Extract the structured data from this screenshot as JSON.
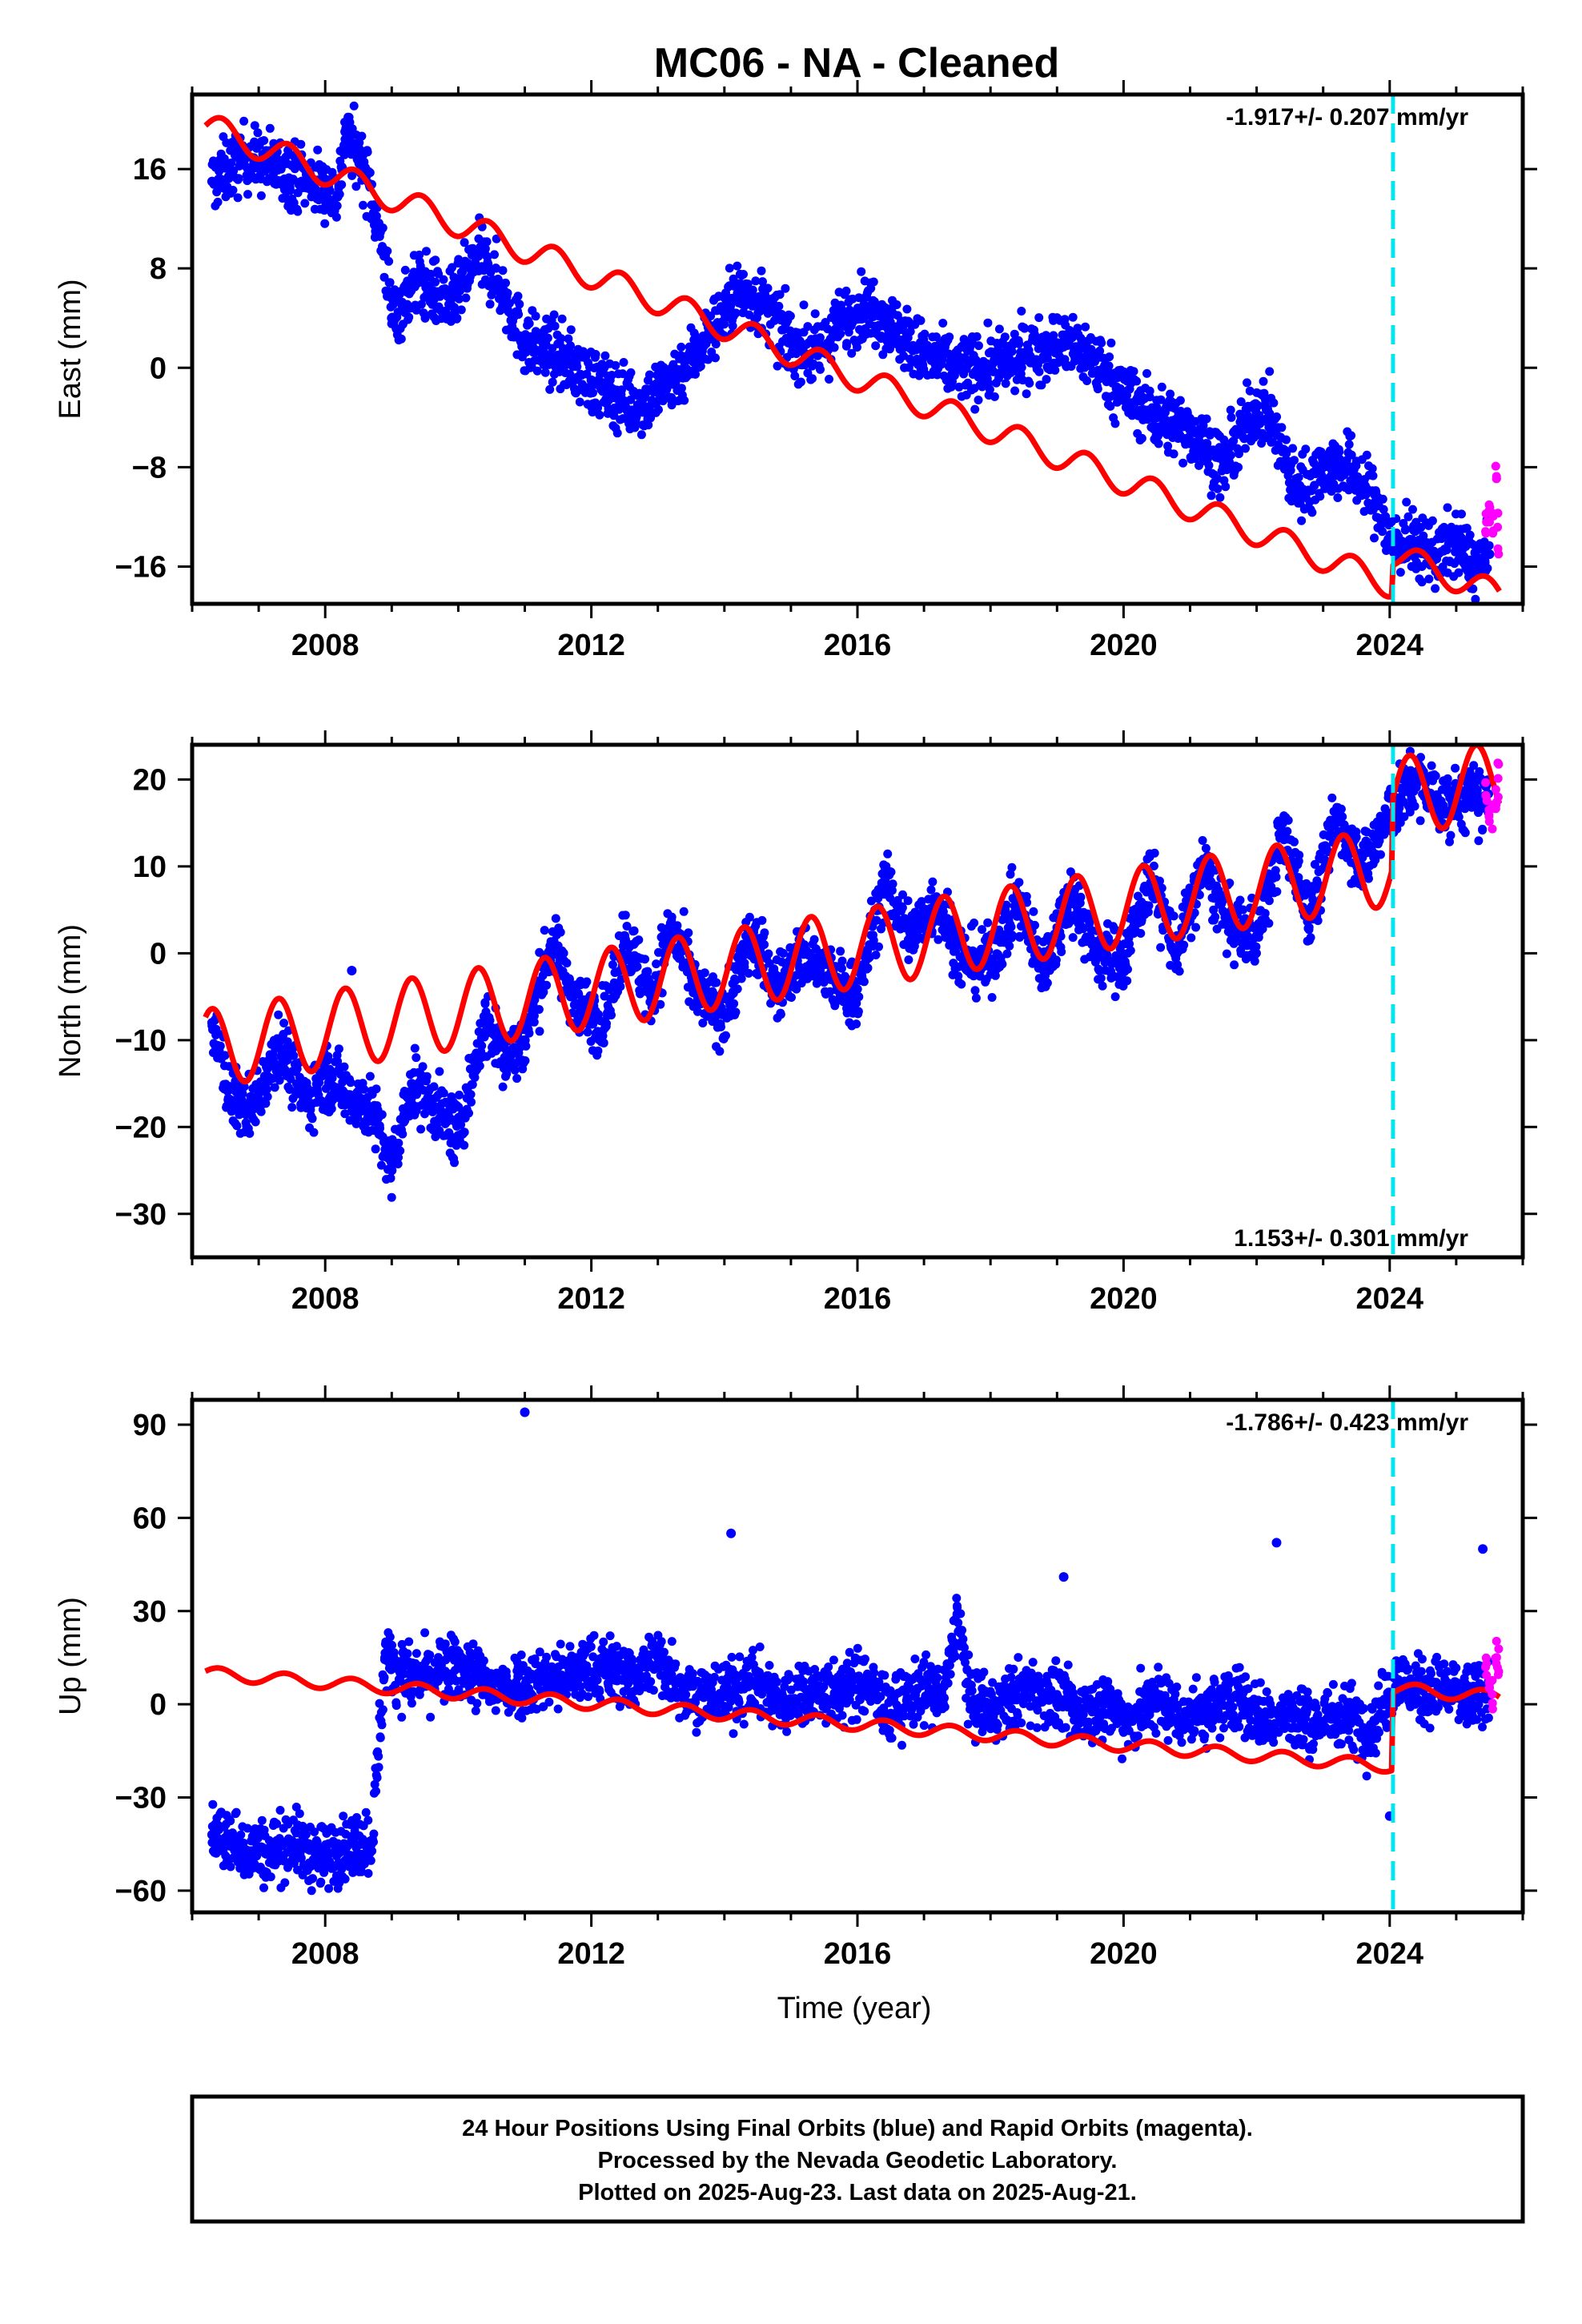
{
  "title": "MC06  - NA - Cleaned",
  "colors": {
    "final_orbits": "#0000ff",
    "rapid_orbits": "#ff00ff",
    "model": "#ff0000",
    "event_marker": "#00e5ee",
    "frame": "#000000"
  },
  "footer": {
    "line1": "24 Hour Positions Using Final Orbits (blue) and Rapid Orbits (magenta).",
    "line2": "Processed by the Nevada Geodetic Laboratory.",
    "line3": "Plotted on 2025-Aug-23. Last data on 2025-Aug-21."
  },
  "chart_data": [
    {
      "type": "scatter",
      "component": "East",
      "ylabel": "East (mm)",
      "xlabel": "",
      "rate_label": "-1.917+/- 0.207 mm/yr",
      "rate_label_position": "top-right",
      "xlim": [
        2006.0,
        2026.0
      ],
      "ylim": [
        -19,
        22
      ],
      "x_ticks": [
        2008,
        2012,
        2016,
        2020,
        2024
      ],
      "y_ticks": [
        -16,
        -8,
        0,
        8,
        16
      ],
      "event_line_x": 2024.05,
      "series": [
        {
          "name": "Final Orbits",
          "color": "#0000ff",
          "kind": "points",
          "x": [
            2006.3,
            2006.8,
            2007.3,
            2007.8,
            2008.2,
            2008.3,
            2008.6,
            2008.9,
            2009.0,
            2009.4,
            2009.9,
            2010.3,
            2010.6,
            2011.0,
            2011.5,
            2012.0,
            2012.3,
            2012.7,
            2013.0,
            2013.4,
            2013.8,
            2014.2,
            2014.6,
            2015.0,
            2015.4,
            2015.8,
            2016.2,
            2016.6,
            2017.0,
            2017.5,
            2018.0,
            2018.5,
            2019.0,
            2019.5,
            2020.0,
            2020.5,
            2021.0,
            2021.5,
            2022.0,
            2022.2,
            2022.6,
            2023.0,
            2023.4,
            2023.8,
            2024.0,
            2024.3,
            2024.7,
            2025.0,
            2025.3,
            2025.5
          ],
          "y": [
            15,
            17,
            16,
            15,
            14,
            19,
            16,
            9,
            4,
            7,
            5,
            9,
            7,
            2,
            1,
            -1,
            -2,
            -3,
            -2,
            0,
            3,
            6,
            5,
            2,
            1,
            4,
            5,
            3,
            1,
            0,
            0,
            1,
            2,
            1,
            -2,
            -4,
            -5,
            -8,
            -3,
            -4,
            -10,
            -8,
            -8,
            -11,
            -14,
            -14,
            -15,
            -14,
            -16,
            -15
          ]
        },
        {
          "name": "Rapid Orbits",
          "color": "#ff00ff",
          "kind": "points",
          "x": [
            2025.45,
            2025.5,
            2025.55,
            2025.6,
            2025.63
          ],
          "y": [
            -13,
            -11,
            -12,
            -9,
            -14
          ]
        },
        {
          "name": "Model",
          "color": "#ff0000",
          "kind": "line",
          "x_start": 2006.2,
          "x_end": 2025.65,
          "y_start": 19.5,
          "y_end_before_step": -17.5,
          "step_x": 2024.05,
          "step_offset": 2.5,
          "seasonal_amplitude": 1.1,
          "seasonal_phase": 0.2
        }
      ]
    },
    {
      "type": "scatter",
      "component": "North",
      "ylabel": "North (mm)",
      "xlabel": "",
      "rate_label": "1.153+/- 0.301 mm/yr",
      "rate_label_position": "bottom-right",
      "xlim": [
        2006.0,
        2026.0
      ],
      "ylim": [
        -35,
        24
      ],
      "x_ticks": [
        2008,
        2012,
        2016,
        2020,
        2024
      ],
      "y_ticks": [
        -30,
        -20,
        -10,
        0,
        10,
        20
      ],
      "event_line_x": 2024.05,
      "series": [
        {
          "name": "Final Orbits",
          "color": "#0000ff",
          "kind": "points",
          "x": [
            2006.3,
            2006.6,
            2006.9,
            2007.3,
            2007.7,
            2008.0,
            2008.4,
            2008.7,
            2009.0,
            2009.3,
            2009.7,
            2010.0,
            2010.4,
            2010.7,
            2011.0,
            2011.4,
            2011.8,
            2012.2,
            2012.5,
            2012.9,
            2013.2,
            2013.6,
            2014.0,
            2014.4,
            2014.8,
            2015.2,
            2015.6,
            2016.0,
            2016.4,
            2016.8,
            2017.2,
            2017.6,
            2018.0,
            2018.4,
            2018.8,
            2019.2,
            2019.6,
            2020.0,
            2020.4,
            2020.8,
            2021.2,
            2021.6,
            2022.0,
            2022.4,
            2022.8,
            2023.2,
            2023.6,
            2024.0,
            2024.4,
            2024.8,
            2025.2,
            2025.5
          ],
          "y": [
            -8,
            -17,
            -18,
            -10,
            -17,
            -14,
            -2,
            -18,
            -25,
            -15,
            -18,
            -21,
            -8,
            -12,
            -10,
            1,
            -6,
            -8,
            2,
            -5,
            3,
            -5,
            -7,
            2,
            -4,
            0,
            -3,
            -5,
            8,
            2,
            6,
            -1,
            -1,
            6,
            -2,
            7,
            0,
            -1,
            9,
            0,
            10,
            3,
            2,
            14,
            4,
            16,
            10,
            16,
            20,
            17,
            18,
            17
          ]
        },
        {
          "name": "Rapid Orbits",
          "color": "#ff00ff",
          "kind": "points",
          "x": [
            2025.45,
            2025.5,
            2025.55,
            2025.6,
            2025.63
          ],
          "y": [
            19,
            17,
            16,
            18,
            20
          ]
        },
        {
          "name": "Model",
          "color": "#ff0000",
          "kind": "line",
          "x_start": 2006.2,
          "x_end": 2025.65,
          "y_start": -11,
          "y_end_before_step": 10,
          "step_x": 2024.05,
          "step_offset": 8,
          "seasonal_amplitude": 4.5,
          "seasonal_phase": 0.05
        }
      ]
    },
    {
      "type": "scatter",
      "component": "Up",
      "ylabel": "Up (mm)",
      "xlabel": "Time (year)",
      "rate_label": "-1.786+/- 0.423 mm/yr",
      "rate_label_position": "top-right",
      "xlim": [
        2006.0,
        2026.0
      ],
      "ylim": [
        -67,
        98
      ],
      "x_ticks": [
        2008,
        2012,
        2016,
        2020,
        2024
      ],
      "y_ticks": [
        -60,
        -30,
        0,
        30,
        60,
        90
      ],
      "event_line_x": 2024.05,
      "series": [
        {
          "name": "Final Orbits",
          "color": "#0000ff",
          "kind": "points",
          "x": [
            2006.3,
            2006.7,
            2007.1,
            2007.5,
            2007.9,
            2008.3,
            2008.7,
            2008.9,
            2009.3,
            2009.7,
            2010.1,
            2010.5,
            2010.9,
            2011.0,
            2011.4,
            2011.8,
            2012.2,
            2012.6,
            2013.0,
            2013.4,
            2013.8,
            2014.1,
            2014.5,
            2014.9,
            2015.3,
            2015.7,
            2016.1,
            2016.5,
            2016.9,
            2017.3,
            2017.5,
            2017.7,
            2018.1,
            2018.5,
            2018.9,
            2019.1,
            2019.3,
            2019.7,
            2020.1,
            2020.5,
            2020.9,
            2021.3,
            2021.7,
            2022.1,
            2022.3,
            2022.5,
            2022.9,
            2023.3,
            2023.7,
            2024.0,
            2024.1,
            2024.4,
            2024.8,
            2025.1,
            2025.4,
            2025.5
          ],
          "y": [
            -42,
            -45,
            -48,
            -44,
            -50,
            -46,
            -44,
            15,
            8,
            10,
            12,
            5,
            9,
            94,
            6,
            10,
            12,
            8,
            15,
            5,
            2,
            55,
            7,
            0,
            5,
            3,
            8,
            -3,
            5,
            2,
            29,
            0,
            -2,
            5,
            3,
            41,
            -3,
            0,
            -5,
            2,
            -4,
            -2,
            3,
            -5,
            52,
            -4,
            -6,
            -3,
            -8,
            -36,
            8,
            4,
            5,
            2,
            50,
            3
          ]
        },
        {
          "name": "Rapid Orbits",
          "color": "#ff00ff",
          "kind": "points",
          "x": [
            2025.45,
            2025.5,
            2025.55,
            2025.6,
            2025.63
          ],
          "y": [
            14,
            8,
            3,
            17,
            10
          ]
        },
        {
          "name": "Model",
          "color": "#ff0000",
          "kind": "line",
          "x_start": 2006.2,
          "x_end": 2025.65,
          "y_start": 10,
          "y_end_before_step": -20,
          "step_x": 2024.05,
          "step_offset": 25,
          "seasonal_amplitude": 2.0,
          "seasonal_phase": 0.15
        }
      ]
    }
  ]
}
